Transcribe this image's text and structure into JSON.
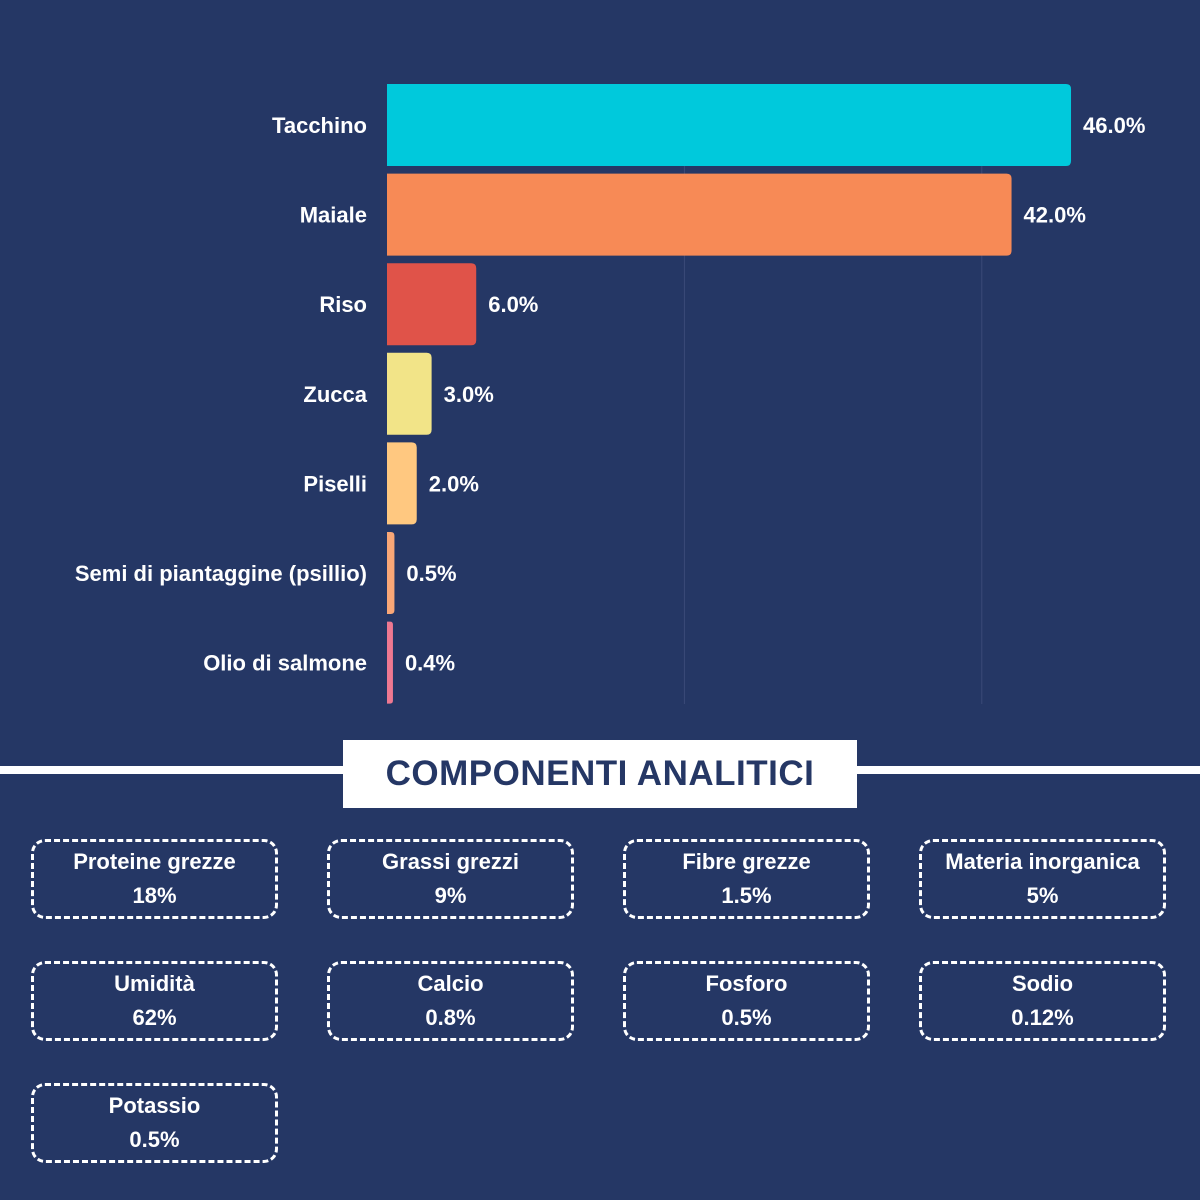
{
  "chart_data": {
    "type": "bar",
    "orientation": "horizontal",
    "categories": [
      "Tacchino",
      "Maiale",
      "Riso",
      "Zucca",
      "Piselli",
      "Semi di piantaggine (psillio)",
      "Olio di salmone"
    ],
    "values": [
      46.0,
      42.0,
      6.0,
      3.0,
      2.0,
      0.5,
      0.4
    ],
    "value_labels": [
      "46.0%",
      "42.0%",
      "6.0%",
      "3.0%",
      "2.0%",
      "0.5%",
      "0.4%"
    ],
    "colors": [
      "#00c9dc",
      "#f78a56",
      "#e05349",
      "#f2e488",
      "#ffc880",
      "#f9a777",
      "#ee7891"
    ],
    "xlim": [
      0,
      50
    ],
    "grid": true,
    "title": "",
    "xlabel": "",
    "ylabel": ""
  },
  "section": {
    "title": "COMPONENTI ANALITICI"
  },
  "components": [
    {
      "name": "Proteine grezze",
      "value": "18%"
    },
    {
      "name": "Grassi grezzi",
      "value": "9%"
    },
    {
      "name": "Fibre grezze",
      "value": "1.5%"
    },
    {
      "name": "Materia inorganica",
      "value": "5%"
    },
    {
      "name": "Umidità",
      "value": "62%"
    },
    {
      "name": "Calcio",
      "value": "0.8%"
    },
    {
      "name": "Fosforo",
      "value": "0.5%"
    },
    {
      "name": "Sodio",
      "value": "0.12%"
    },
    {
      "name": "Potassio",
      "value": "0.5%"
    }
  ]
}
